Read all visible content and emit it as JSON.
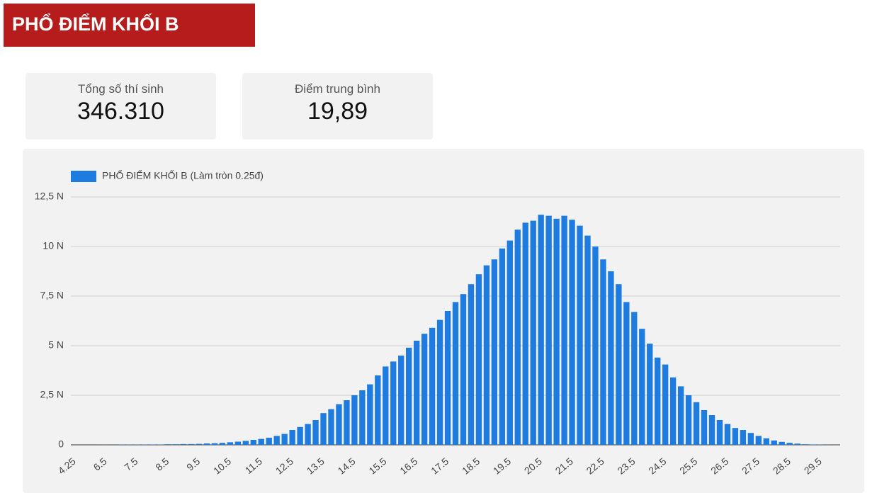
{
  "header": {
    "title": "PHỔ ĐIỂM KHỐI B"
  },
  "stats": [
    {
      "label": "Tổng số thí sinh",
      "value": "346.310"
    },
    {
      "label": "Điểm trung bình",
      "value": "19,89"
    }
  ],
  "chart_data": {
    "type": "bar",
    "categories": [
      "4.25",
      null,
      null,
      null,
      "6.5",
      null,
      null,
      null,
      "7.5",
      null,
      null,
      null,
      "8.5",
      null,
      null,
      null,
      "9.5",
      null,
      null,
      null,
      "10.5",
      null,
      null,
      null,
      "11.5",
      null,
      null,
      null,
      "12.5",
      null,
      null,
      null,
      "13.5",
      null,
      null,
      null,
      "14.5",
      null,
      null,
      null,
      "15.5",
      null,
      null,
      null,
      "16.5",
      null,
      null,
      null,
      "17.5",
      null,
      null,
      null,
      "18.5",
      null,
      null,
      null,
      "19.5",
      null,
      null,
      null,
      "20.5",
      null,
      null,
      null,
      "21.5",
      null,
      null,
      null,
      "22.5",
      null,
      null,
      null,
      "23.5",
      null,
      null,
      null,
      "24.5",
      null,
      null,
      null,
      "25.5",
      null,
      null,
      null,
      "26.5",
      null,
      null,
      null,
      "27.5",
      null,
      null,
      null,
      "28.5",
      null,
      null,
      null,
      "29.5",
      null,
      null
    ],
    "series": [
      {
        "name": "PHỔ ĐIỂM KHỐI B (Làm tròn 0.25đ)",
        "color": "#1e7be0",
        "values": [
          0.001,
          0.001,
          0.002,
          0.003,
          0.005,
          0.005,
          0.01,
          0.01,
          0.01,
          0.015,
          0.02,
          0.02,
          0.03,
          0.03,
          0.04,
          0.04,
          0.05,
          0.07,
          0.08,
          0.1,
          0.13,
          0.16,
          0.2,
          0.25,
          0.3,
          0.36,
          0.45,
          0.55,
          0.75,
          0.9,
          1.05,
          1.25,
          1.6,
          1.8,
          2.05,
          2.25,
          2.5,
          2.75,
          3.05,
          3.5,
          3.95,
          4.2,
          4.5,
          4.9,
          5.25,
          5.6,
          5.9,
          6.3,
          6.75,
          7.2,
          7.6,
          8.1,
          8.6,
          9.05,
          9.35,
          9.9,
          10.3,
          10.85,
          11.2,
          11.3,
          11.6,
          11.55,
          11.4,
          11.55,
          11.35,
          11.05,
          10.55,
          10.0,
          9.35,
          8.75,
          8.1,
          7.2,
          6.7,
          5.85,
          5.1,
          4.4,
          4.05,
          3.4,
          2.95,
          2.5,
          2.15,
          1.75,
          1.5,
          1.25,
          1.05,
          0.85,
          0.75,
          0.6,
          0.45,
          0.33,
          0.22,
          0.15,
          0.1,
          0.06,
          0.03,
          0.02,
          0.01,
          0.005,
          0.002
        ]
      }
    ],
    "ylim": [
      0,
      12.5
    ],
    "yticks": [
      0,
      {
        "value": 2.5,
        "label": "2,5 N"
      },
      {
        "value": 5,
        "label": "5 N"
      },
      {
        "value": 7.5,
        "label": "7,5 N"
      },
      {
        "value": 10,
        "label": "10 N"
      },
      {
        "value": 12.5,
        "label": "12,5 N"
      }
    ],
    "grid": true,
    "legend": "top-left"
  }
}
